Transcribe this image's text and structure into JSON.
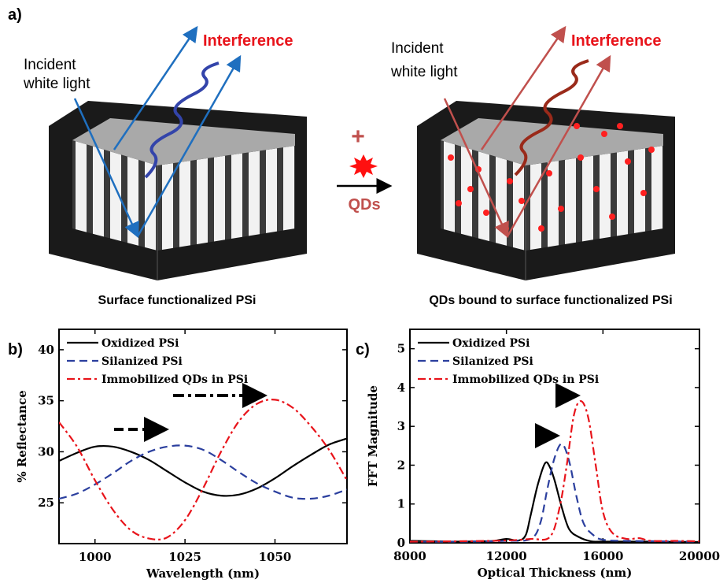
{
  "panel_a": {
    "label": "a)",
    "left": {
      "incident": [
        "Incident",
        "white light"
      ],
      "interference": "Interference",
      "caption": "Surface functionalized PSi"
    },
    "middle": {
      "plus": "+",
      "qds": "QDs"
    },
    "right": {
      "incident": [
        "Incident",
        "white light"
      ],
      "interference": "Interference",
      "caption": "QDs bound to surface functionalized PSi"
    },
    "colors": {
      "blue": "#1f6fbf",
      "red": "#c0504d",
      "label_red": "#e8141b"
    }
  },
  "chart_data": [
    {
      "panel": "b)",
      "type": "line",
      "xlabel": "Wavelength (nm)",
      "ylabel": "% Reflectance",
      "xlim": [
        990,
        1070
      ],
      "ylim": [
        21,
        42
      ],
      "xticks": [
        1000,
        1025,
        1050
      ],
      "yticks": [
        25,
        30,
        35,
        40
      ],
      "legend": "top-left",
      "x": [
        990,
        995,
        1000,
        1005,
        1010,
        1015,
        1020,
        1025,
        1030,
        1035,
        1040,
        1045,
        1050,
        1055,
        1060,
        1065,
        1070
      ],
      "series": [
        {
          "name": "Oxidized PSi",
          "color": "#000000",
          "dash": "solid",
          "values": [
            29.1,
            29.9,
            30.5,
            30.5,
            30.0,
            29.2,
            28.1,
            27.0,
            26.1,
            25.7,
            25.8,
            26.4,
            27.4,
            28.6,
            29.7,
            30.7,
            31.3
          ]
        },
        {
          "name": "Silanized PSi",
          "color": "#2b3f9e",
          "dash": "dash",
          "values": [
            25.4,
            25.9,
            26.8,
            27.9,
            29.1,
            30.0,
            30.5,
            30.6,
            30.2,
            29.2,
            28.0,
            26.9,
            26.1,
            25.5,
            25.4,
            25.7,
            26.3
          ]
        },
        {
          "name": "Immobilized QDs in PSi",
          "color": "#e8141b",
          "dash": "dashdot",
          "values": [
            32.9,
            30.5,
            27.2,
            24.3,
            22.3,
            21.5,
            21.6,
            23.3,
            26.4,
            30.0,
            33.0,
            34.7,
            35.1,
            34.3,
            32.5,
            30.2,
            27.2
          ]
        }
      ]
    },
    {
      "panel": "c)",
      "type": "line",
      "xlabel": "Optical Thickness (nm)",
      "ylabel": "FFT Magnitude",
      "xlim": [
        8000,
        20000
      ],
      "ylim": [
        0,
        5.5
      ],
      "xticks": [
        8000,
        12000,
        16000,
        20000
      ],
      "yticks": [
        0,
        1,
        2,
        3,
        4,
        5
      ],
      "legend": "top-left",
      "series": [
        {
          "name": "Oxidized PSi",
          "color": "#000000",
          "dash": "solid",
          "x": [
            8000,
            9000,
            10000,
            11000,
            11500,
            12000,
            12500,
            12800,
            13000,
            13300,
            13600,
            13800,
            14000,
            14300,
            14600,
            15000,
            15500,
            16000,
            18000,
            20000
          ],
          "values": [
            0.05,
            0.04,
            0.03,
            0.04,
            0.05,
            0.1,
            0.06,
            0.2,
            0.7,
            1.5,
            2.05,
            1.95,
            1.6,
            0.9,
            0.35,
            0.15,
            0.04,
            0.03,
            0.03,
            0.02
          ]
        },
        {
          "name": "Silanized PSi",
          "color": "#2b3f9e",
          "dash": "dash",
          "x": [
            8000,
            10000,
            12000,
            13000,
            13400,
            13700,
            14000,
            14300,
            14600,
            14900,
            15200,
            15600,
            16000,
            17000,
            20000
          ],
          "values": [
            0.03,
            0.03,
            0.05,
            0.1,
            0.5,
            1.4,
            2.2,
            2.55,
            2.1,
            1.2,
            0.5,
            0.2,
            0.08,
            0.05,
            0.03
          ]
        },
        {
          "name": "Immobilized QDs in PSi",
          "color": "#e8141b",
          "dash": "dashdot",
          "x": [
            8000,
            10000,
            12000,
            13000,
            13800,
            14200,
            14500,
            14800,
            15100,
            15400,
            15700,
            16000,
            16400,
            17000,
            17500,
            18000,
            19000,
            20000
          ],
          "values": [
            0.03,
            0.04,
            0.06,
            0.1,
            0.15,
            0.9,
            2.0,
            3.3,
            3.65,
            3.2,
            2.0,
            0.8,
            0.25,
            0.1,
            0.12,
            0.05,
            0.05,
            0.04
          ]
        }
      ]
    }
  ]
}
